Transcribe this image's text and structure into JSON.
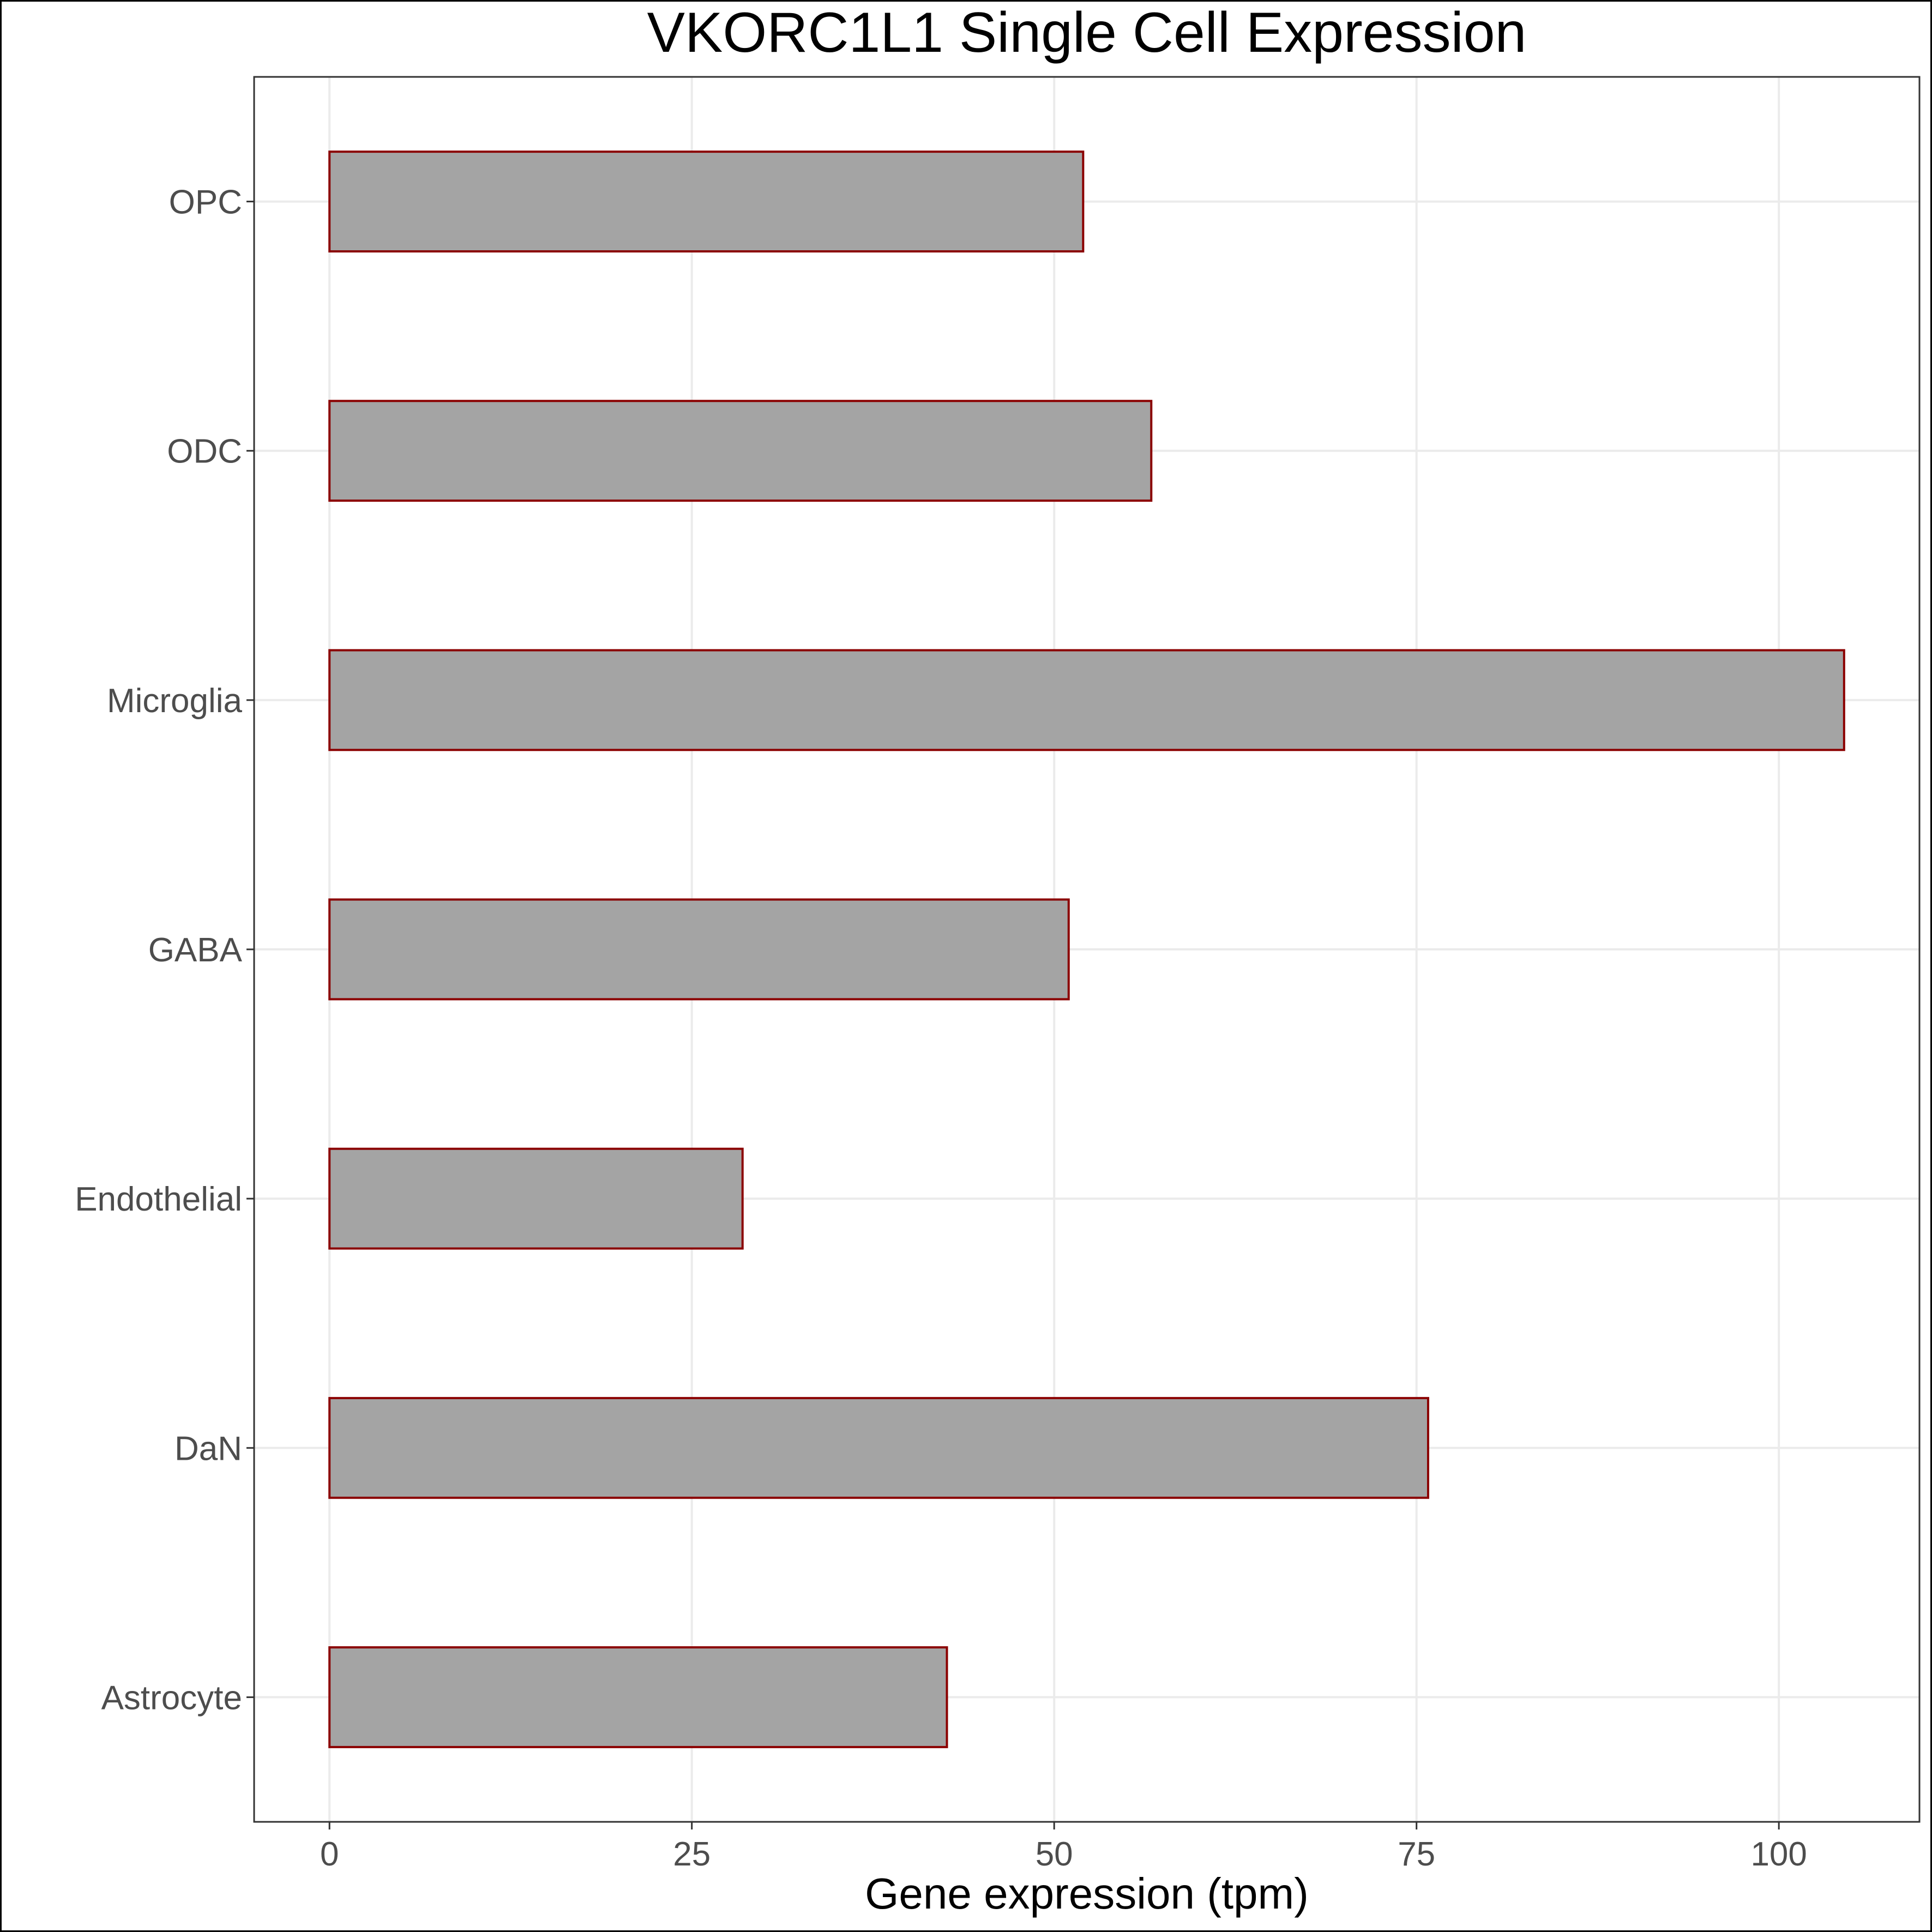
{
  "chart_data": {
    "type": "bar",
    "orientation": "horizontal",
    "title": "VKORC1L1 Single Cell Expression",
    "xlabel": "Gene expression (tpm)",
    "ylabel": "",
    "categories": [
      "Astrocyte",
      "DaN",
      "Endothelial",
      "GABA",
      "Microglia",
      "ODC",
      "OPC"
    ],
    "values": [
      42.6,
      75.8,
      28.5,
      51.0,
      104.5,
      56.7,
      52.0
    ],
    "xlim": [
      -5.2,
      109.7
    ],
    "xticks": [
      0,
      25,
      50,
      75,
      100
    ],
    "grid": true,
    "bar_fill": "#a4a4a4",
    "bar_outline": "#8b0000",
    "grid_color": "#ebebeb"
  }
}
